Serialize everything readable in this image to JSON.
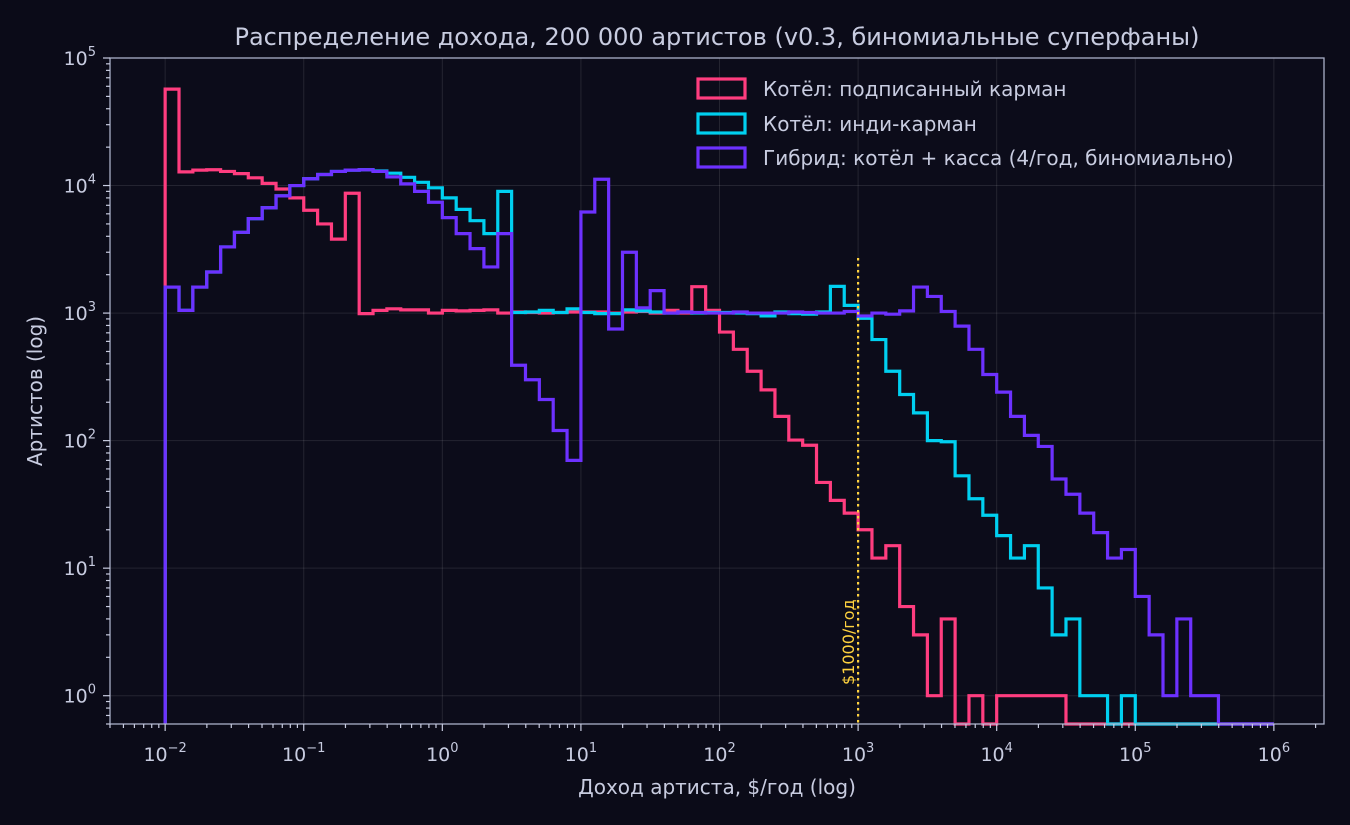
{
  "chart_data": {
    "type": "histogram",
    "title": "Распределение дохода, 200 000 артистов (v0.3, биномиальные суперфаны)",
    "xlabel": "Доход артиста, $/год (log)",
    "ylabel": "Артистов (log)",
    "x_scale": "log",
    "y_scale": "log",
    "xlim": [
      0.004,
      2300000
    ],
    "ylim": [
      0.6,
      100000
    ],
    "grid": true,
    "legend_position": "top-right",
    "x_ticks": [
      {
        "value": 0.01,
        "base": "10",
        "exp": "−2"
      },
      {
        "value": 0.1,
        "base": "10",
        "exp": "−1"
      },
      {
        "value": 1,
        "base": "10",
        "exp": "0"
      },
      {
        "value": 10,
        "base": "10",
        "exp": "1"
      },
      {
        "value": 100,
        "base": "10",
        "exp": "2"
      },
      {
        "value": 1000,
        "base": "10",
        "exp": "3"
      },
      {
        "value": 10000,
        "base": "10",
        "exp": "4"
      },
      {
        "value": 100000,
        "base": "10",
        "exp": "5"
      },
      {
        "value": 1000000,
        "base": "10",
        "exp": "6"
      }
    ],
    "y_ticks": [
      {
        "value": 1,
        "base": "10",
        "exp": "0"
      },
      {
        "value": 10,
        "base": "10",
        "exp": "1"
      },
      {
        "value": 100,
        "base": "10",
        "exp": "2"
      },
      {
        "value": 1000,
        "base": "10",
        "exp": "3"
      },
      {
        "value": 10000,
        "base": "10",
        "exp": "4"
      },
      {
        "value": 100000,
        "base": "10",
        "exp": "5"
      }
    ],
    "bins": {
      "start_log10": -2,
      "end_log10": 6,
      "count": 80
    },
    "reference_line": {
      "x": 1000,
      "label": "$1000/год",
      "color": "#ffd23f"
    },
    "series": [
      {
        "name": "Котёл: подписанный карман",
        "color": "#ff3d7f",
        "values": [
          57000,
          12800,
          13200,
          13300,
          12900,
          12400,
          11500,
          10400,
          9400,
          8000,
          6400,
          5000,
          3800,
          8700,
          990,
          1050,
          1080,
          1060,
          1060,
          1000,
          1050,
          1040,
          1050,
          1060,
          1000,
          1020,
          1010,
          1000,
          1010,
          1020,
          1020,
          1020,
          1000,
          1020,
          1030,
          1000,
          1050,
          1000,
          1610,
          1050,
          710,
          520,
          350,
          250,
          155,
          101,
          92,
          47,
          34,
          27,
          20,
          12,
          15,
          5,
          3,
          1,
          4,
          0,
          1,
          0,
          1,
          1,
          1,
          1,
          1,
          0,
          0,
          0,
          0,
          0,
          0,
          0,
          0,
          0,
          0,
          0,
          0,
          0,
          0,
          0
        ]
      },
      {
        "name": "Котёл: инди-карман",
        "color": "#00d0f0",
        "values": [
          1600,
          1050,
          1600,
          2100,
          3300,
          4300,
          5500,
          6700,
          8300,
          10000,
          11300,
          12200,
          12900,
          13200,
          13300,
          13000,
          12500,
          11600,
          10600,
          9600,
          8000,
          6500,
          5300,
          4200,
          9000,
          1010,
          1020,
          1050,
          1010,
          1080,
          1010,
          990,
          990,
          1060,
          1040,
          1020,
          1000,
          1020,
          1000,
          1010,
          1010,
          1000,
          990,
          950,
          1020,
          990,
          980,
          1020,
          1620,
          1150,
          910,
          620,
          350,
          230,
          165,
          100,
          98,
          53,
          35,
          26,
          18,
          12,
          15,
          7,
          3,
          4,
          1,
          1,
          0,
          1,
          0,
          0,
          0,
          0,
          0,
          0,
          0,
          0,
          0,
          0
        ]
      },
      {
        "name": "Гибрид: котёл + касса (4/год, биномиально)",
        "color": "#6d31ff",
        "values": [
          1600,
          1050,
          1600,
          2100,
          3300,
          4300,
          5500,
          6700,
          8300,
          10000,
          11300,
          12200,
          12900,
          13200,
          13300,
          12900,
          11700,
          10300,
          9000,
          7400,
          5600,
          4200,
          3200,
          2300,
          4200,
          390,
          300,
          210,
          120,
          70,
          6200,
          11200,
          750,
          3000,
          1100,
          1500,
          1000,
          1020,
          1010,
          1000,
          1000,
          1020,
          1000,
          1000,
          1000,
          1020,
          1010,
          1000,
          1000,
          1030,
          950,
          1000,
          980,
          1040,
          1600,
          1350,
          1030,
          790,
          520,
          330,
          240,
          155,
          110,
          90,
          50,
          38,
          27,
          19,
          12,
          14,
          6,
          3,
          1,
          4,
          1,
          1,
          0,
          0,
          0,
          0
        ]
      }
    ]
  }
}
